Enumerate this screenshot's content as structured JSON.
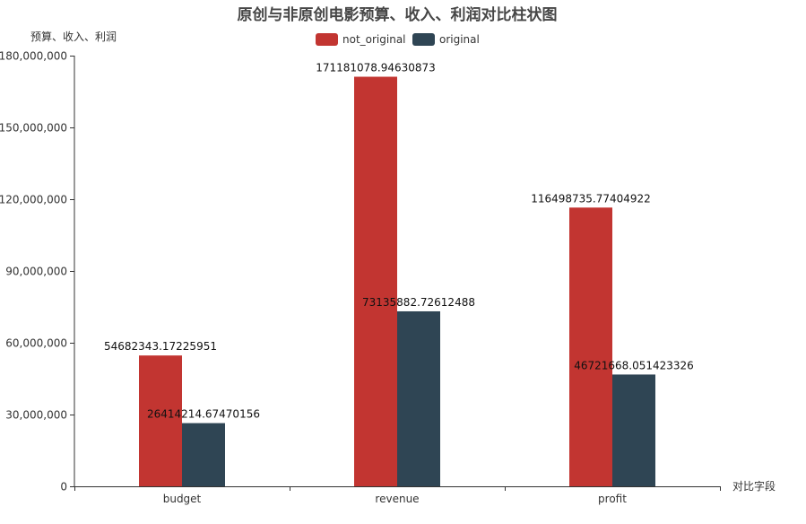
{
  "chart_data": {
    "type": "bar",
    "title": "原创与非原创电影预算、收入、利润对比柱状图",
    "xlabel": "对比字段",
    "ylabel": "预算、收入、利润",
    "categories": [
      "budget",
      "revenue",
      "profit"
    ],
    "series": [
      {
        "name": "not_original",
        "color": "#c23531",
        "values": [
          54682343.17225951,
          171181078.94630873,
          116498735.77404922
        ],
        "labels": [
          "54682343.17225951",
          "171181078.94630873",
          "116498735.77404922"
        ]
      },
      {
        "name": "original",
        "color": "#2f4554",
        "values": [
          26414214.67470156,
          73135882.72612488,
          46721668.051423326
        ],
        "labels": [
          "26414214.67470156",
          "73135882.72612488",
          "46721668.051423326"
        ]
      }
    ],
    "ylim": [
      0,
      180000000
    ],
    "yticks": [
      0,
      30000000,
      60000000,
      90000000,
      120000000,
      150000000,
      180000000
    ],
    "ytick_labels": [
      "0",
      "30,000,000",
      "60,000,000",
      "90,000,000",
      "120,000,000",
      "150,000,000",
      "180,000,000"
    ],
    "grid": false,
    "legend_position": "top-center"
  }
}
